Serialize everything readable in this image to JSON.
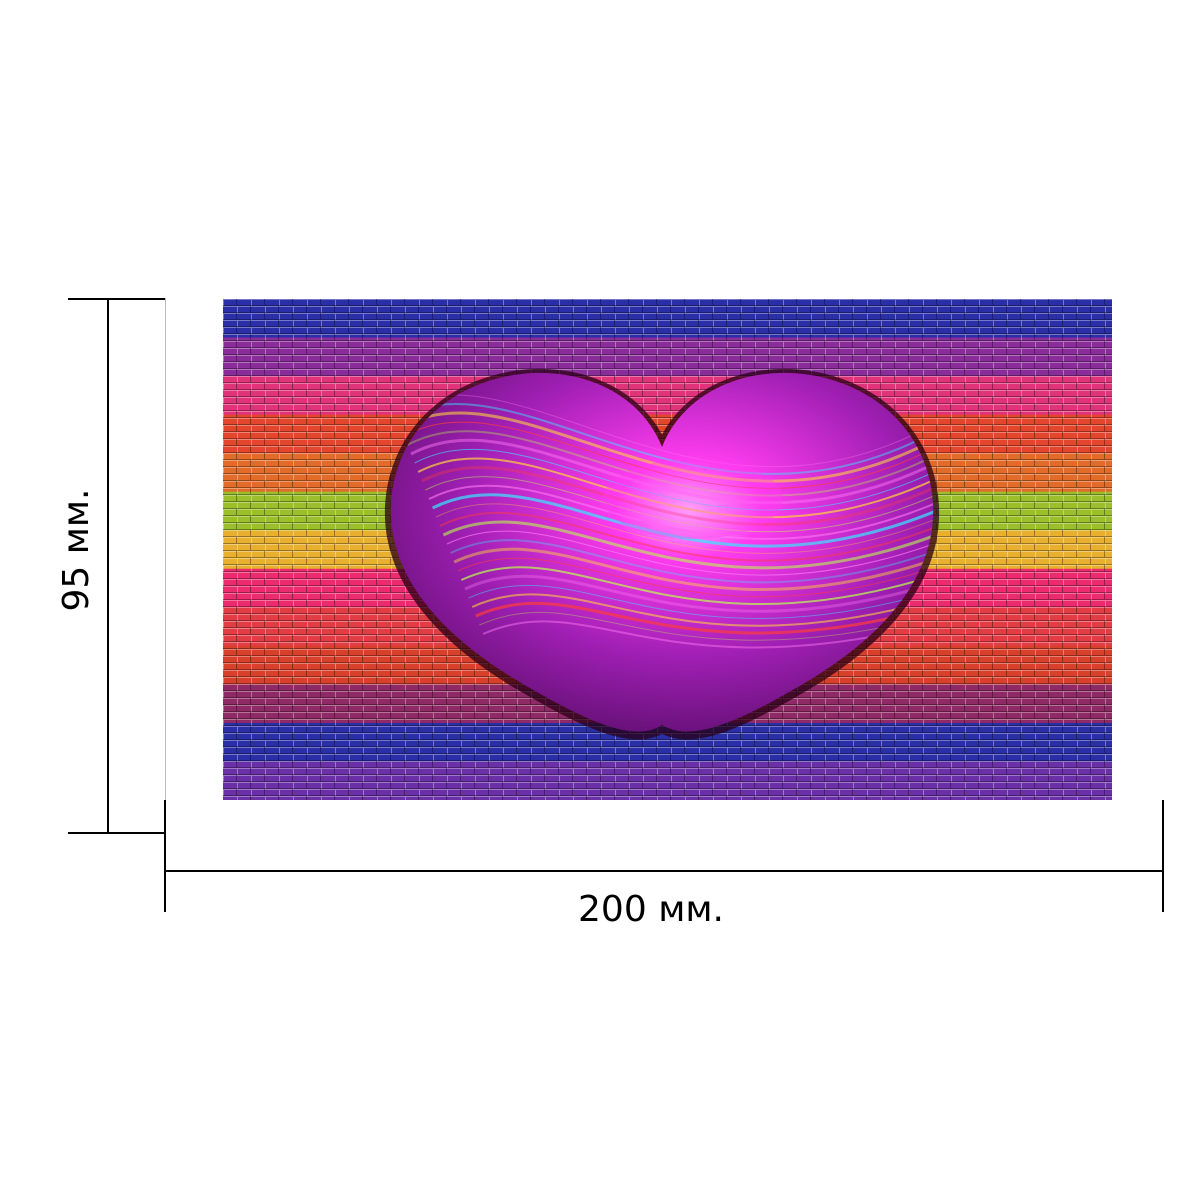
{
  "dimensions": {
    "width_label": "200 мм.",
    "height_label": "95 мм."
  },
  "artwork": {
    "subject": "heart-icon",
    "colors": {
      "stripes": [
        "#2a2fa8",
        "#8a2c9a",
        "#e0337a",
        "#e4452d",
        "#e36b2a",
        "#9bbf2a",
        "#e8b02e",
        "#ec2b6e",
        "#e23c45",
        "#d9402c",
        "#8f2a66",
        "#2a2fa8",
        "#6b2fa8"
      ],
      "heart_base": "#a01fb4",
      "heart_glow": "#ff3cf0",
      "swirl": [
        "#ff7af5",
        "#39e6ff",
        "#ffd43a",
        "#ff3b3b",
        "#b8ff4a"
      ]
    }
  }
}
